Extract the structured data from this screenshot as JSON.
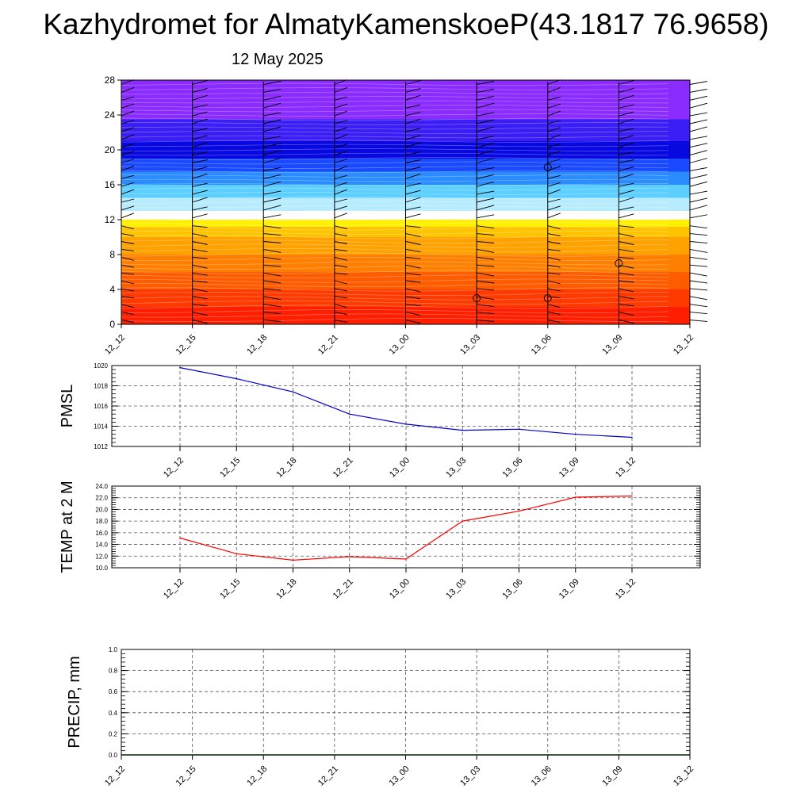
{
  "title": "Kazhydromet for AlmatyKamenskoeP(43.1817 76.9658)",
  "subtitle": "12 May 2025",
  "chart_data": [
    {
      "type": "heatmap",
      "title": "",
      "ylabel": "",
      "xlabel": "",
      "ylim": [
        0,
        28
      ],
      "y_ticks": [
        "0",
        "4",
        "8",
        "12",
        "16",
        "20",
        "24",
        "28"
      ],
      "x_ticks": [
        "12_12",
        "12_15",
        "12_18",
        "12_21",
        "13_00",
        "13_03",
        "13_06",
        "13_09",
        "13_12"
      ],
      "colormap": [
        "#ff1a00",
        "#ff6a00",
        "#ffb300",
        "#ffee00",
        "#ffffff",
        "#6fd6ff",
        "#1f6fff",
        "#0a0adf",
        "#8a2bff"
      ],
      "color_bands": [
        {
          "from": 0,
          "to": 2,
          "color": "#ff1f00"
        },
        {
          "from": 2,
          "to": 4,
          "color": "#ff3a00"
        },
        {
          "from": 4,
          "to": 6,
          "color": "#ff5c00"
        },
        {
          "from": 6,
          "to": 8,
          "color": "#ff7f00"
        },
        {
          "from": 8,
          "to": 10,
          "color": "#ffa200"
        },
        {
          "from": 10,
          "to": 11.2,
          "color": "#ffc400"
        },
        {
          "from": 11.2,
          "to": 12,
          "color": "#fff000"
        },
        {
          "from": 12,
          "to": 13,
          "color": "#ffffff"
        },
        {
          "from": 13,
          "to": 14.5,
          "color": "#b7ecff"
        },
        {
          "from": 14.5,
          "to": 16,
          "color": "#5ccfff"
        },
        {
          "from": 16,
          "to": 17.5,
          "color": "#2a8cff"
        },
        {
          "from": 17.5,
          "to": 19,
          "color": "#1a4aff"
        },
        {
          "from": 19,
          "to": 21,
          "color": "#0808e0"
        },
        {
          "from": 21,
          "to": 23.5,
          "color": "#3a1ef5"
        },
        {
          "from": 23.5,
          "to": 28,
          "color": "#8a2bff"
        }
      ],
      "wind_barb_columns": [
        "12_12",
        "12_15",
        "12_18",
        "12_21",
        "13_00",
        "13_03",
        "13_06",
        "13_09",
        "13_12"
      ],
      "calm_markers": [
        {
          "x": "13_03",
          "y": 3
        },
        {
          "x": "13_06",
          "y": 3
        },
        {
          "x": "13_06",
          "y": 18
        },
        {
          "x": "13_09",
          "y": 7
        }
      ]
    },
    {
      "type": "line",
      "ylabel": "PMSL",
      "ylim": [
        1012,
        1020
      ],
      "y_ticks": [
        "1012",
        "1014",
        "1016",
        "1018",
        "1020"
      ],
      "categories": [
        "12_12",
        "12_15",
        "12_18",
        "12_21",
        "13_00",
        "13_03",
        "13_06",
        "13_09",
        "13_12"
      ],
      "series": [
        {
          "values": [
            1019.8,
            1018.7,
            1017.4,
            1015.2,
            1014.2,
            1013.6,
            1013.7,
            1013.2,
            1012.9
          ],
          "color": "#0000cc"
        }
      ]
    },
    {
      "type": "line",
      "ylabel": "TEMP at 2 M",
      "ylim": [
        10,
        24
      ],
      "y_ticks": [
        "10.0",
        "12.0",
        "14.0",
        "16.0",
        "18.0",
        "20.0",
        "22.0",
        "24.0"
      ],
      "categories": [
        "12_12",
        "12_15",
        "12_18",
        "12_21",
        "13_00",
        "13_03",
        "13_06",
        "13_09",
        "13_12"
      ],
      "series": [
        {
          "values": [
            15.1,
            12.4,
            11.3,
            11.9,
            11.5,
            18.0,
            19.7,
            22.1,
            22.3
          ],
          "color": "#ff0000"
        }
      ]
    },
    {
      "type": "line",
      "ylabel": "PRECIP, mm",
      "ylim": [
        0,
        1
      ],
      "y_ticks": [
        "0.0",
        "0.2",
        "0.4",
        "0.6",
        "0.8",
        "1.0"
      ],
      "x_ticks": [
        "12_12",
        "12_15",
        "12_18",
        "12_21",
        "13_00",
        "13_03",
        "13_06",
        "13_09",
        "13_12"
      ],
      "series": [
        {
          "values": [
            0,
            0,
            0,
            0,
            0,
            0,
            0,
            0,
            0
          ],
          "color": "#006400"
        }
      ]
    }
  ]
}
